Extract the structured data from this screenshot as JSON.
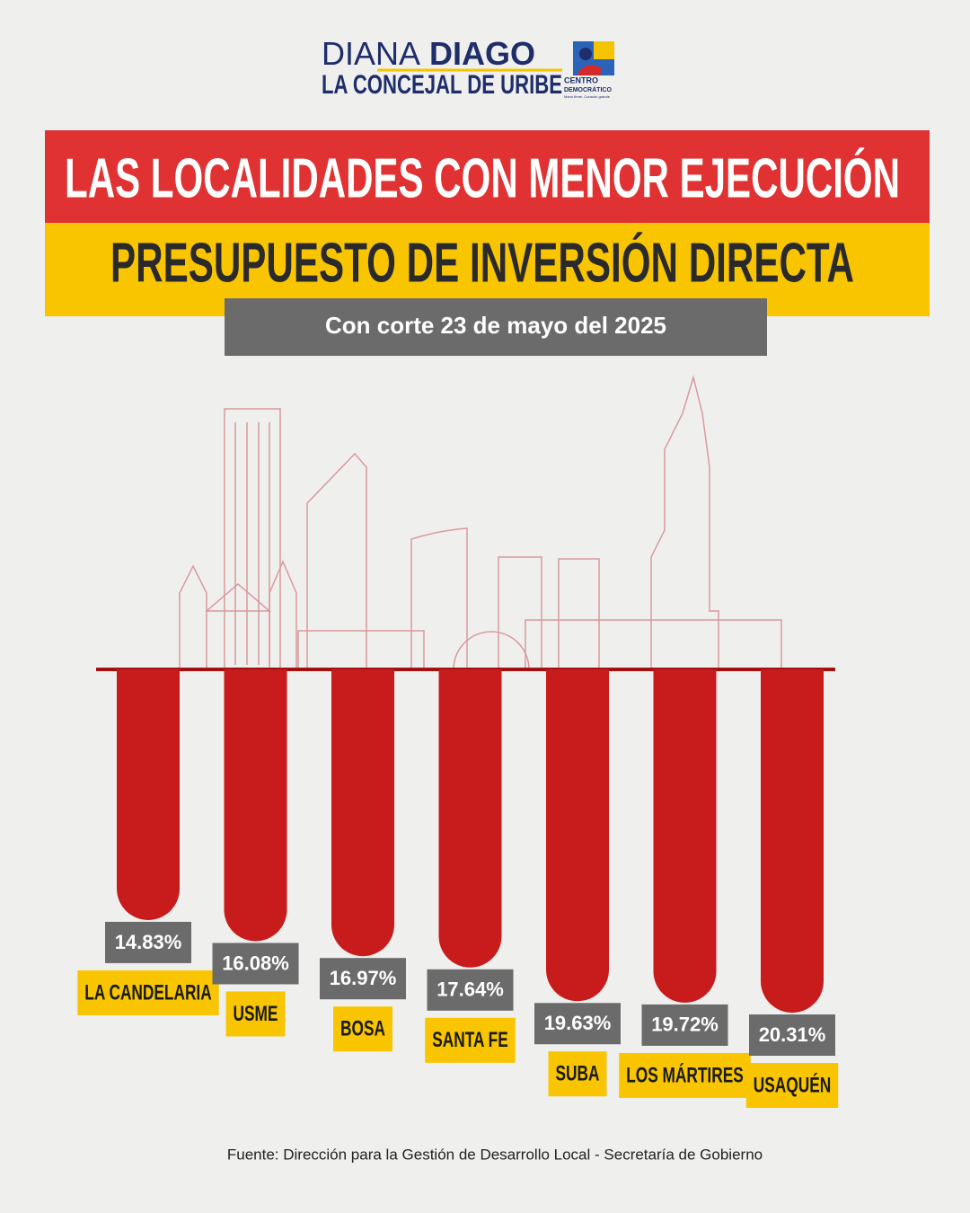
{
  "header": {
    "logo_light": "DIANA",
    "logo_bold": "DIAGO",
    "logo_tagline": "LA CONCEJAL DE URIBE",
    "party_top": "CENTRO",
    "party_bottom": "DEMOCRÁTICO",
    "party_slogan": "Mano firme, Corazón grande"
  },
  "chart_data": {
    "type": "bar",
    "title": "LAS LOCALIDADES CON MENOR EJECUCIÓN",
    "subtitle": "PRESUPUESTO DE INVERSIÓN DIRECTA",
    "date_note": "Con corte 23 de mayo del 2025",
    "categories": [
      "LA CANDELARIA",
      "USME",
      "BOSA",
      "SANTA FE",
      "SUBA",
      "LOS MÁRTIRES",
      "USAQUÉN"
    ],
    "values": [
      14.83,
      16.08,
      16.97,
      17.64,
      19.63,
      19.72,
      20.31
    ],
    "value_labels": [
      "14.83%",
      "16.08%",
      "16.97%",
      "17.64%",
      "19.63%",
      "19.72%",
      "20.31%"
    ],
    "color": "#c81b1b",
    "ylim": [
      0,
      21
    ],
    "source": "Fuente: Dirección para la Gestión de Desarrollo Local - Secretaría de Gobierno"
  }
}
